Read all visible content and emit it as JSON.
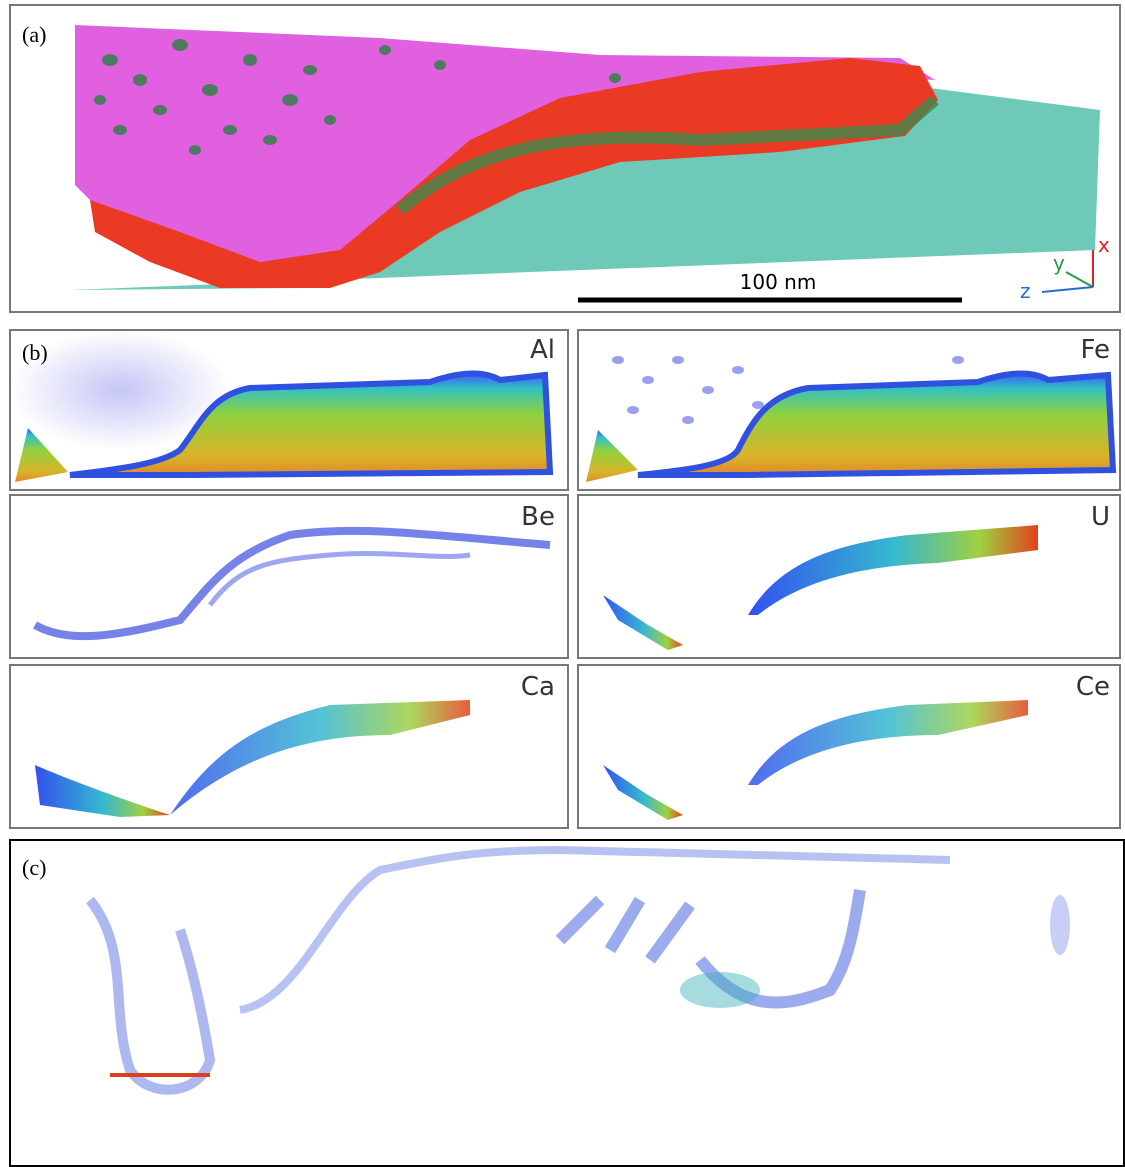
{
  "panel_a": {
    "label": "(a)",
    "scale_bar": "100 nm",
    "axes": {
      "x": "x",
      "y": "y",
      "z": "z"
    }
  },
  "panel_b": {
    "label": "(b)",
    "maps": [
      "Al",
      "Fe",
      "Be",
      "U",
      "Ca",
      "Ce"
    ]
  },
  "panel_c": {
    "label": "(c)"
  }
}
